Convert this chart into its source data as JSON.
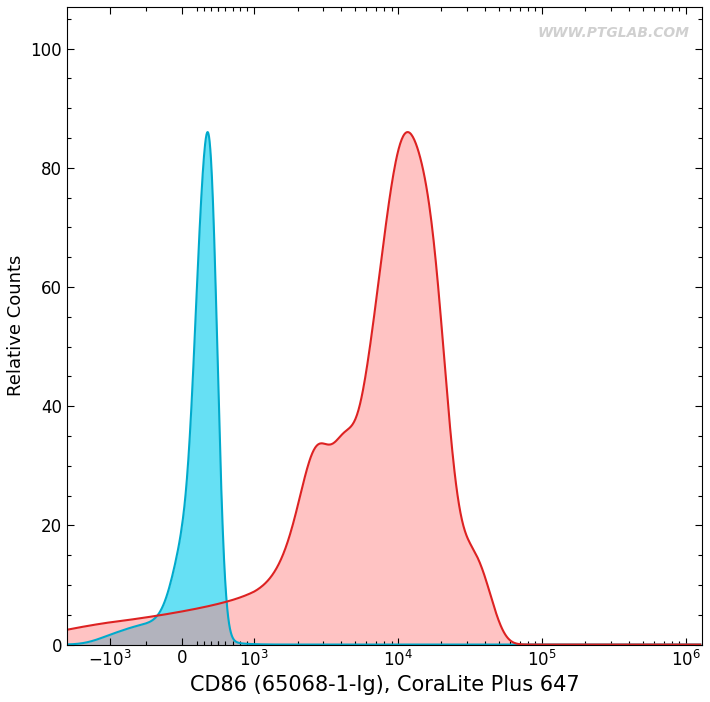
{
  "xlabel": "CD86 (65068-1-Ig), CoraLite Plus 647",
  "ylabel": "Relative Counts",
  "ylim": [
    0,
    107
  ],
  "yticks": [
    0,
    20,
    40,
    60,
    80,
    100
  ],
  "watermark": "WWW.PTGLAB.COM",
  "blue_color": "#00CCEE",
  "blue_edge_color": "#00AACC",
  "red_color": "#FF8888",
  "red_edge_color": "#DD2222",
  "background_color": "#FFFFFF",
  "xlabel_fontsize": 15,
  "ylabel_fontsize": 13,
  "tick_fontsize": 12,
  "linthresh": 1000,
  "linscale": 0.45
}
